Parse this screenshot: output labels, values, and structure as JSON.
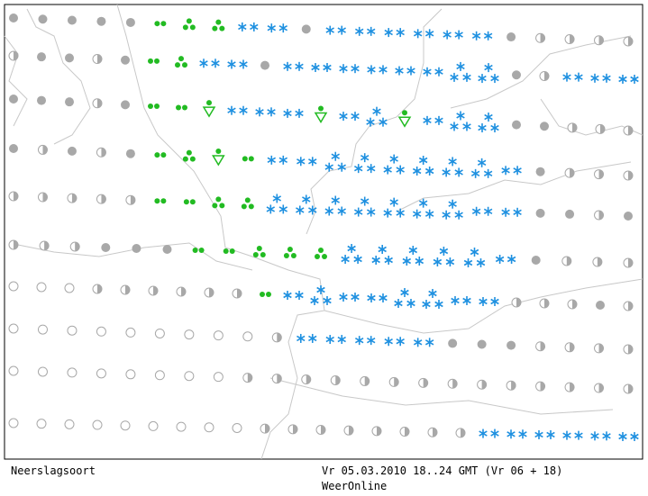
{
  "footer": {
    "label": "Neerslagsoort",
    "timestamp": "Vr 05.03.2010 18..24 GMT (Vr 06 + 18)",
    "source": "WeerOnline"
  }
}
